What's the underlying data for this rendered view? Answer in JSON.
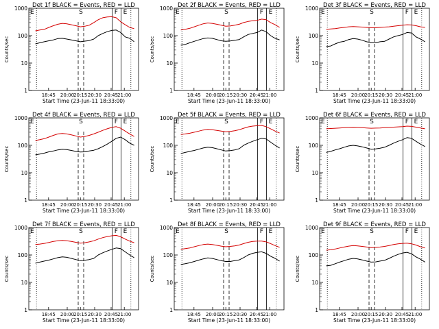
{
  "colors": {
    "events": "#000000",
    "lld": "#d40000",
    "axis": "#000000"
  },
  "chart_data": {
    "type": "line",
    "layout": "3x3 grid",
    "time_ticks": [
      "18:45",
      "20:00",
      "20:15",
      "20:30",
      "20:45",
      "21:00"
    ],
    "xlabel": "Start Time (23-Jun-11 18:33:00)",
    "ylabel": "Counts/sec",
    "yscale": "log",
    "ylim": [
      1,
      1000
    ],
    "y_ticks": [
      "1",
      "10",
      "100",
      "1000"
    ],
    "marker_letters": [
      "E",
      "S",
      "F",
      "E"
    ],
    "panels": [
      {
        "title": "Det 1f BLACK = Events, RED = LLD",
        "events": [
          50,
          55,
          60,
          65,
          70,
          78,
          80,
          75,
          70,
          65,
          60,
          63,
          66,
          75,
          100,
          120,
          140,
          155,
          160,
          130,
          90,
          80,
          60
        ],
        "lld": [
          150,
          160,
          170,
          200,
          230,
          260,
          280,
          270,
          250,
          230,
          210,
          220,
          240,
          300,
          380,
          450,
          480,
          490,
          450,
          320,
          250,
          200,
          180
        ]
      },
      {
        "title": "Det 2f BLACK = Events, RED = LLD",
        "events": [
          45,
          48,
          55,
          62,
          70,
          78,
          82,
          80,
          72,
          65,
          62,
          64,
          68,
          72,
          90,
          110,
          120,
          130,
          160,
          140,
          100,
          80,
          70
        ],
        "lld": [
          160,
          170,
          185,
          210,
          240,
          270,
          290,
          280,
          260,
          240,
          220,
          225,
          240,
          260,
          300,
          330,
          350,
          360,
          400,
          380,
          300,
          250,
          200
        ]
      },
      {
        "title": "Det 3f BLACK = Events, RED = LLD",
        "events": [
          40,
          42,
          50,
          58,
          62,
          72,
          78,
          75,
          68,
          60,
          55,
          55,
          60,
          62,
          75,
          90,
          100,
          110,
          130,
          125,
          90,
          75,
          60
        ],
        "lld": [
          170,
          175,
          180,
          190,
          200,
          210,
          215,
          210,
          205,
          200,
          195,
          195,
          200,
          205,
          210,
          220,
          230,
          240,
          250,
          245,
          230,
          210,
          200
        ]
      },
      {
        "title": "Det 4f BLACK = Events, RED = LLD",
        "events": [
          45,
          48,
          52,
          58,
          62,
          68,
          72,
          70,
          65,
          60,
          57,
          58,
          62,
          66,
          75,
          90,
          110,
          140,
          180,
          200,
          160,
          120,
          100
        ],
        "lld": [
          150,
          160,
          175,
          200,
          230,
          260,
          270,
          260,
          240,
          220,
          200,
          210,
          230,
          260,
          300,
          350,
          400,
          450,
          480,
          420,
          330,
          260,
          210
        ]
      },
      {
        "title": "Det 5f BLACK = Events, RED = LLD",
        "events": [
          50,
          55,
          60,
          65,
          72,
          80,
          85,
          82,
          75,
          68,
          62,
          64,
          68,
          75,
          100,
          120,
          140,
          160,
          180,
          170,
          130,
          100,
          80
        ],
        "lld": [
          250,
          260,
          275,
          300,
          330,
          360,
          380,
          370,
          350,
          330,
          310,
          320,
          340,
          370,
          420,
          470,
          500,
          520,
          530,
          480,
          400,
          330,
          280
        ]
      },
      {
        "title": "Det 6f BLACK = Events, RED = LLD",
        "events": [
          55,
          60,
          68,
          75,
          85,
          95,
          100,
          95,
          88,
          80,
          72,
          74,
          78,
          85,
          100,
          120,
          140,
          160,
          190,
          180,
          140,
          110,
          90
        ],
        "lld": [
          400,
          410,
          420,
          430,
          440,
          450,
          455,
          450,
          440,
          430,
          420,
          425,
          430,
          440,
          450,
          460,
          470,
          480,
          500,
          490,
          460,
          430,
          400
        ]
      },
      {
        "title": "Det 7f BLACK = Events, RED = LLD",
        "events": [
          50,
          55,
          60,
          65,
          72,
          80,
          85,
          82,
          75,
          68,
          62,
          64,
          68,
          75,
          100,
          120,
          140,
          160,
          180,
          170,
          130,
          100,
          80
        ],
        "lld": [
          240,
          250,
          265,
          285,
          310,
          330,
          340,
          330,
          310,
          290,
          270,
          280,
          300,
          330,
          380,
          430,
          470,
          500,
          520,
          460,
          380,
          320,
          280
        ]
      },
      {
        "title": "Det 8f BLACK = Events, RED = LLD",
        "events": [
          45,
          48,
          52,
          58,
          65,
          72,
          78,
          75,
          68,
          62,
          58,
          58,
          62,
          66,
          80,
          100,
          115,
          125,
          130,
          115,
          90,
          75,
          60
        ],
        "lld": [
          160,
          170,
          180,
          200,
          220,
          240,
          250,
          240,
          225,
          210,
          200,
          205,
          215,
          230,
          260,
          290,
          310,
          320,
          320,
          300,
          260,
          220,
          190
        ]
      },
      {
        "title": "Det 9f BLACK = Events, RED = LLD",
        "events": [
          40,
          42,
          48,
          55,
          62,
          70,
          75,
          72,
          66,
          60,
          55,
          56,
          60,
          64,
          75,
          90,
          105,
          118,
          125,
          110,
          85,
          70,
          55
        ],
        "lld": [
          150,
          155,
          165,
          180,
          195,
          210,
          220,
          215,
          205,
          195,
          185,
          188,
          195,
          205,
          220,
          240,
          255,
          265,
          270,
          255,
          230,
          200,
          180
        ]
      }
    ]
  }
}
